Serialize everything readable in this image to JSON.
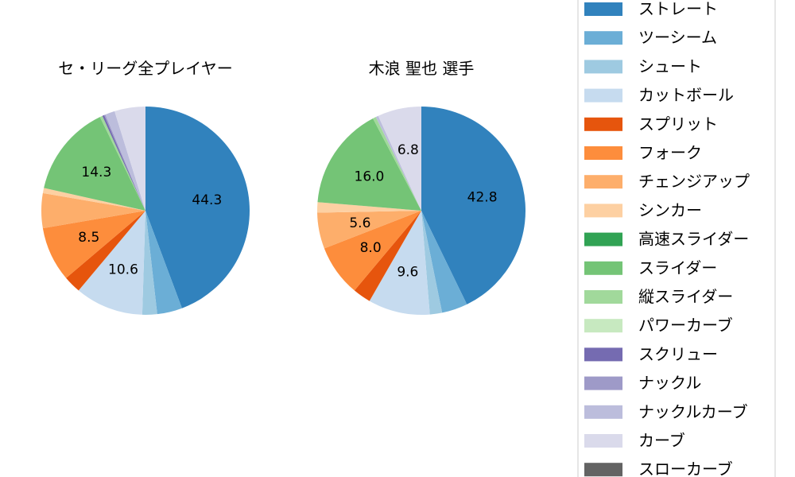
{
  "chart_data": [
    {
      "type": "pie",
      "title": "セ・リーグ全プレイヤー",
      "categories": [
        "ストレート",
        "ツーシーム",
        "シュート",
        "カットボール",
        "スプリット",
        "フォーク",
        "チェンジアップ",
        "シンカー",
        "高速スライダー",
        "スライダー",
        "縦スライダー",
        "パワーカーブ",
        "スクリュー",
        "ナックル",
        "ナックルカーブ",
        "カーブ",
        "スローカーブ"
      ],
      "values": [
        44.3,
        3.9,
        2.3,
        10.6,
        2.7,
        8.5,
        5.4,
        0.8,
        0,
        14.3,
        0.4,
        0,
        0.3,
        0.2,
        1.5,
        4.8,
        0
      ],
      "data_labels": [
        "44.3",
        "",
        "",
        "10.6",
        "",
        "8.5",
        "",
        "",
        "",
        "14.3",
        "",
        "",
        "",
        "",
        "",
        "",
        ""
      ]
    },
    {
      "type": "pie",
      "title": "木浪 聖也  選手",
      "categories": [
        "ストレート",
        "ツーシーム",
        "シュート",
        "カットボール",
        "スプリット",
        "フォーク",
        "チェンジアップ",
        "シンカー",
        "高速スライダー",
        "スライダー",
        "縦スライダー",
        "パワーカーブ",
        "スクリュー",
        "ナックル",
        "ナックルカーブ",
        "カーブ",
        "スローカーブ"
      ],
      "values": [
        42.8,
        4.0,
        1.9,
        9.6,
        2.8,
        8.0,
        5.6,
        1.6,
        0,
        16.0,
        0.5,
        0,
        0,
        0,
        0.4,
        6.8,
        0
      ],
      "data_labels": [
        "42.8",
        "",
        "",
        "9.6",
        "",
        "8.0",
        "5.6",
        "",
        "",
        "16.0",
        "",
        "",
        "",
        "",
        "",
        "6.8",
        ""
      ]
    }
  ],
  "legend": {
    "placement": "right",
    "entries": [
      "ストレート",
      "ツーシーム",
      "シュート",
      "カットボール",
      "スプリット",
      "フォーク",
      "チェンジアップ",
      "シンカー",
      "高速スライダー",
      "スライダー",
      "縦スライダー",
      "パワーカーブ",
      "スクリュー",
      "ナックル",
      "ナックルカーブ",
      "カーブ",
      "スローカーブ"
    ]
  },
  "colors": [
    "#3182bd",
    "#6baed6",
    "#9ecae1",
    "#c6dbef",
    "#e6550d",
    "#fd8d3c",
    "#fdae6b",
    "#fdd0a2",
    "#31a354",
    "#74c476",
    "#a1d99b",
    "#c7e9c0",
    "#756bb1",
    "#9e9ac8",
    "#bcbddc",
    "#dadaeb",
    "#636363"
  ]
}
